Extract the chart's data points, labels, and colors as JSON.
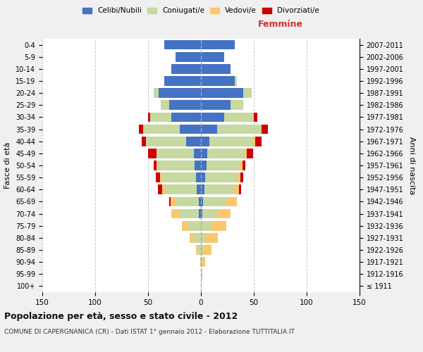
{
  "age_groups": [
    "100+",
    "95-99",
    "90-94",
    "85-89",
    "80-84",
    "75-79",
    "70-74",
    "65-69",
    "60-64",
    "55-59",
    "50-54",
    "45-49",
    "40-44",
    "35-39",
    "30-34",
    "25-29",
    "20-24",
    "15-19",
    "10-14",
    "5-9",
    "0-4"
  ],
  "birth_years": [
    "≤ 1911",
    "1912-1916",
    "1917-1921",
    "1922-1926",
    "1927-1931",
    "1932-1936",
    "1937-1941",
    "1942-1946",
    "1947-1951",
    "1952-1956",
    "1957-1961",
    "1962-1966",
    "1967-1971",
    "1972-1976",
    "1977-1981",
    "1982-1986",
    "1987-1991",
    "1992-1996",
    "1997-2001",
    "2002-2006",
    "2007-2011"
  ],
  "males": {
    "celibi": [
      0,
      0,
      0,
      0,
      0,
      0,
      2,
      2,
      4,
      5,
      6,
      7,
      14,
      20,
      28,
      30,
      40,
      35,
      28,
      24,
      35
    ],
    "coniugati": [
      0,
      0,
      1,
      3,
      7,
      12,
      18,
      22,
      30,
      32,
      35,
      35,
      38,
      35,
      20,
      8,
      5,
      0,
      0,
      0,
      0
    ],
    "vedovi": [
      0,
      0,
      0,
      2,
      4,
      6,
      8,
      5,
      3,
      2,
      1,
      0,
      0,
      0,
      0,
      0,
      0,
      0,
      0,
      0,
      0
    ],
    "divorziati": [
      0,
      0,
      0,
      0,
      0,
      0,
      0,
      1,
      4,
      4,
      3,
      8,
      4,
      4,
      2,
      0,
      0,
      0,
      0,
      0,
      0
    ]
  },
  "females": {
    "nubili": [
      0,
      0,
      0,
      0,
      0,
      0,
      1,
      2,
      3,
      4,
      5,
      6,
      8,
      15,
      22,
      28,
      40,
      32,
      28,
      22,
      32
    ],
    "coniugate": [
      0,
      0,
      1,
      2,
      4,
      10,
      15,
      22,
      28,
      30,
      32,
      35,
      42,
      42,
      28,
      12,
      8,
      2,
      0,
      0,
      0
    ],
    "vedove": [
      0,
      1,
      3,
      8,
      12,
      14,
      12,
      10,
      5,
      3,
      2,
      2,
      1,
      0,
      0,
      0,
      0,
      0,
      0,
      0,
      0
    ],
    "divorziate": [
      0,
      0,
      0,
      0,
      0,
      0,
      0,
      0,
      2,
      3,
      3,
      6,
      6,
      6,
      3,
      0,
      0,
      0,
      0,
      0,
      0
    ]
  },
  "colors": {
    "celibi": "#4472C4",
    "coniugati": "#C6D9A0",
    "vedovi": "#FAC76E",
    "divorziati": "#CC0000"
  },
  "title": "Popolazione per età, sesso e stato civile - 2012",
  "subtitle": "COMUNE DI CAPERGNANICA (CR) - Dati ISTAT 1° gennaio 2012 - Elaborazione TUTTITALIA.IT",
  "xlabel_right": "Femmine",
  "ylabel_left": "Fasce di età",
  "ylabel_right": "Anni di nascita",
  "xlim": 150,
  "bg_color": "#f0f0f0",
  "plot_bg": "#ffffff",
  "grid_color": "#cccccc"
}
